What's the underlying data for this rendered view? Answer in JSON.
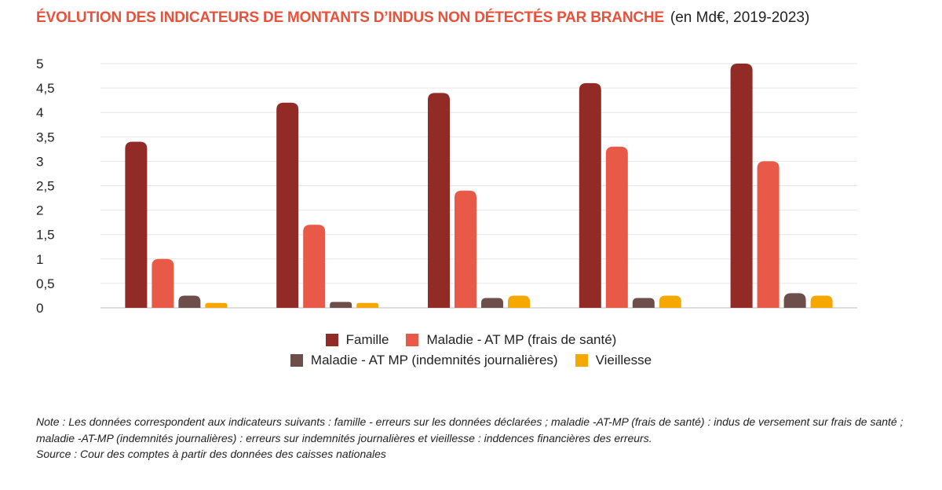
{
  "title": {
    "main": "ÉVOLUTION DES INDICATEURS DE MONTANTS D’INDUS NON DÉTECTÉS PAR BRANCHE",
    "sub": "(en Md€, 2019-2023)"
  },
  "colors": {
    "title": "#e8513a",
    "famille": "#922b26",
    "sante": "#e85a47",
    "ij": "#6e4e4a",
    "vieillesse": "#f5a800",
    "grid": "#e6e6e6",
    "axis": "#bdbdbd"
  },
  "legend": {
    "row1": [
      "Famille",
      "Maladie - AT MP (frais de santé)"
    ],
    "row2": [
      "Maladie - AT MP (indemnités journalières)",
      "Vieillesse"
    ]
  },
  "note": {
    "text": "Note : Les données correspondent aux indicateurs suivants : famille - erreurs sur les données déclarées ; maladie -AT-MP (frais de santé) : indus de versement sur frais de santé ; maladie -AT-MP (indemnités journalières) : erreurs sur indemnités journalières et vieillesse : inddences financières des erreurs.",
    "source": "Source : Cour des comptes à partir des données des caisses nationales"
  },
  "chart_data": {
    "type": "bar",
    "categories": [
      "",
      "",
      "",
      "",
      ""
    ],
    "ylim": [
      0,
      5
    ],
    "yticks": [
      "0",
      "0,5",
      "1",
      "1,5",
      "2",
      "2,5",
      "3",
      "3,5",
      "4",
      "4,5",
      "5"
    ],
    "grid": true,
    "legend_position": "bottom",
    "series": [
      {
        "name": "Famille",
        "color": "#922b26",
        "values": [
          3.4,
          4.2,
          4.4,
          4.6,
          5.0
        ]
      },
      {
        "name": "Maladie - AT MP (frais de santé)",
        "color": "#e85a47",
        "values": [
          1.0,
          1.7,
          2.4,
          3.3,
          3.0
        ]
      },
      {
        "name": "Maladie - AT MP (indemnités journalières)",
        "color": "#6e4e4a",
        "values": [
          0.25,
          0.12,
          0.2,
          0.2,
          0.3
        ]
      },
      {
        "name": "Vieillesse",
        "color": "#f5a800",
        "values": [
          0.1,
          0.1,
          0.25,
          0.25,
          0.25
        ]
      }
    ]
  }
}
